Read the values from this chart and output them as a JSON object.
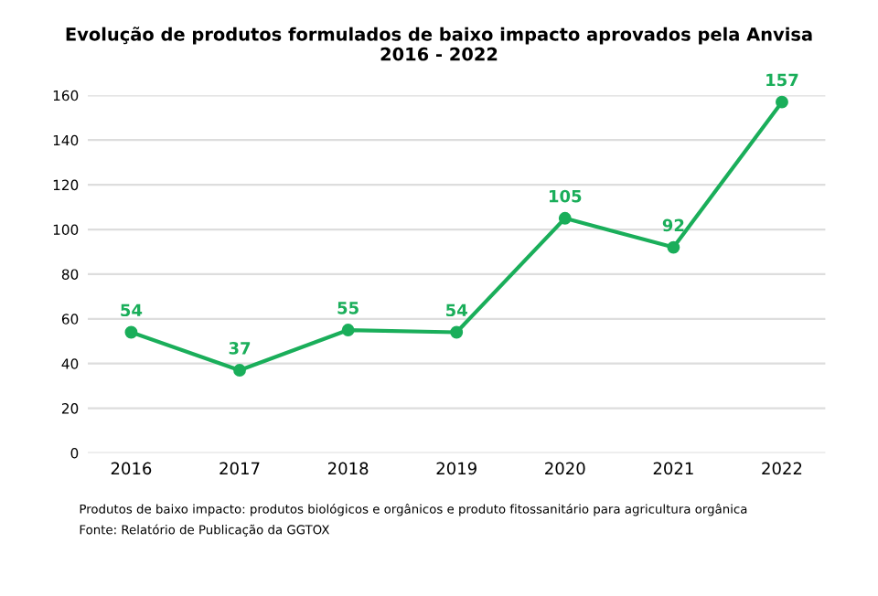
{
  "chart_data": {
    "type": "line",
    "title": "Evolução de produtos formulados de baixo impacto aprovados pela Anvisa\n2016 - 2022",
    "categories": [
      "2016",
      "2017",
      "2018",
      "2019",
      "2020",
      "2021",
      "2022"
    ],
    "series": [
      {
        "color": "#1aae5a",
        "values": [
          54,
          37,
          55,
          54,
          105,
          92,
          157
        ]
      }
    ],
    "ylim": [
      0,
      160
    ],
    "yticks": [
      0,
      20,
      40,
      60,
      80,
      100,
      120,
      140,
      160
    ],
    "grid": "y",
    "marker": "circle",
    "line_style": "solid",
    "data_labels": true,
    "legend": false,
    "annotations": [
      "Produtos de baixo impacto: produtos biológicos e orgânicos e produto fitossanitário para agricultura orgânica",
      "Fonte: Relatório de Publicação da GGTOX"
    ]
  }
}
